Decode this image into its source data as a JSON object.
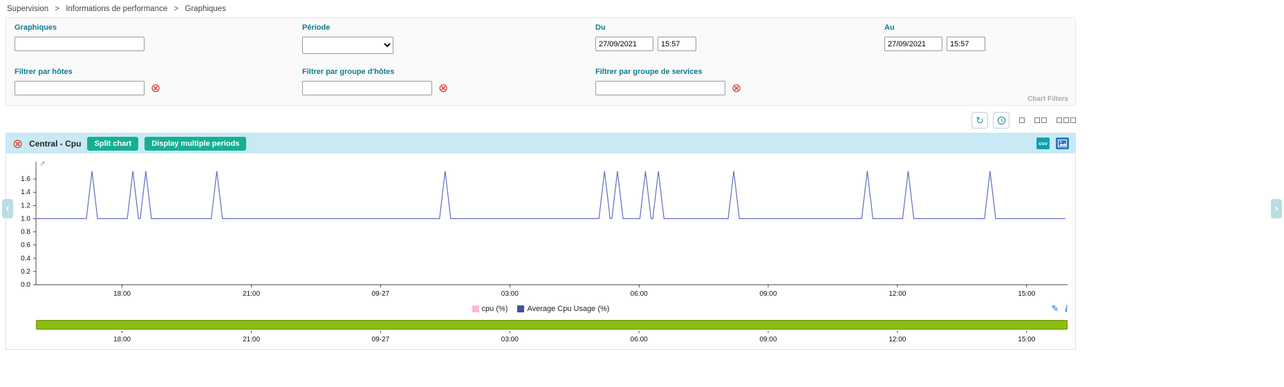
{
  "breadcrumb": {
    "separator": ">",
    "items": [
      "Supervision",
      "Informations de performance",
      "Graphiques"
    ]
  },
  "filters": {
    "graphiques": {
      "label": "Graphiques",
      "value": ""
    },
    "periode": {
      "label": "Période",
      "value": ""
    },
    "du": {
      "label": "Du",
      "date": "27/09/2021",
      "time": "15:57"
    },
    "au": {
      "label": "Au",
      "date": "27/09/2021",
      "time": "15:57"
    },
    "hosts": {
      "label": "Filtrer par hôtes",
      "value": ""
    },
    "hostgroups": {
      "label": "Filtrer par groupe d'hôtes",
      "value": ""
    },
    "servicegroups": {
      "label": "Filtrer par groupe de services",
      "value": ""
    },
    "chart_filters_label": "Chart Filters"
  },
  "icons": {
    "refresh": "↻",
    "clear": "⊗",
    "close": "⊗",
    "csv": "csv",
    "pan_left": "‹",
    "pan_right": "›",
    "edit": "✎",
    "info": "i",
    "zoom_hint": "↗"
  },
  "chart_header": {
    "title": "Central - Cpu",
    "split_chart_label": "Split chart",
    "multiple_periods_label": "Display multiple periods"
  },
  "chart_data": {
    "type": "line",
    "title": "Central - Cpu",
    "grid": false,
    "legend_position": "bottom-center",
    "x_domain_hours": 23.95,
    "x_ticks": [
      {
        "label": "18:00",
        "h": 2
      },
      {
        "label": "21:00",
        "h": 5
      },
      {
        "label": "09-27",
        "h": 8
      },
      {
        "label": "03:00",
        "h": 11
      },
      {
        "label": "06:00",
        "h": 14
      },
      {
        "label": "09:00",
        "h": 17
      },
      {
        "label": "12:00",
        "h": 20
      },
      {
        "label": "15:00",
        "h": 23
      }
    ],
    "y_ticks": [
      0,
      0.2,
      0.4,
      0.6,
      0.8,
      1.0,
      1.2,
      1.4,
      1.6
    ],
    "ylim": [
      0,
      1.82
    ],
    "series": [
      {
        "name": "Average Cpu Usage (%)",
        "color": "#5f6cc0",
        "baseline": 1.0,
        "peak": 1.72,
        "spike_half_width_hours": 0.13,
        "spikes_hours": [
          1.3,
          2.25,
          2.55,
          4.2,
          9.5,
          13.2,
          13.5,
          14.15,
          14.45,
          16.2,
          19.3,
          20.25,
          22.15
        ]
      }
    ],
    "legend": [
      {
        "label": "cpu (%)",
        "color": "#f9b9da"
      },
      {
        "label": "Average Cpu Usage (%)",
        "color": "#3d52a1"
      }
    ]
  }
}
